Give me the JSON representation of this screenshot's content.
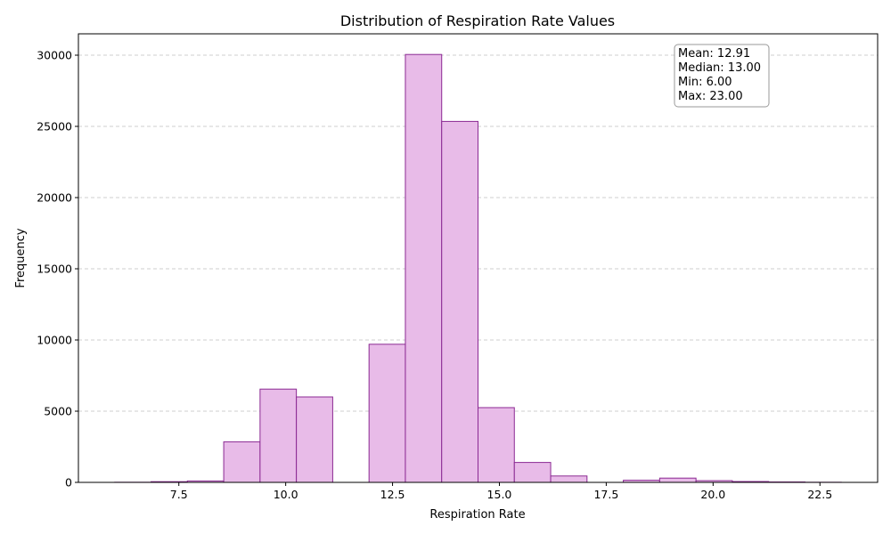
{
  "chart_data": {
    "type": "bar",
    "title": "Distribution of Respiration Rate Values",
    "xlabel": "Respiration Rate",
    "ylabel": "Frequency",
    "xlim": [
      5.15,
      23.85
    ],
    "ylim": [
      0,
      31500
    ],
    "x_ticks": [
      7.5,
      10.0,
      12.5,
      15.0,
      17.5,
      20.0,
      22.5
    ],
    "x_tick_labels": [
      "7.5",
      "10.0",
      "12.5",
      "15.0",
      "17.5",
      "20.0",
      "22.5"
    ],
    "y_ticks": [
      0,
      5000,
      10000,
      15000,
      20000,
      25000,
      30000
    ],
    "y_tick_labels": [
      "0",
      "5000",
      "10000",
      "15000",
      "20000",
      "25000",
      "30000"
    ],
    "grid": "y-dashed",
    "bin_edges": [
      6.0,
      6.85,
      7.7,
      8.55,
      9.4,
      10.25,
      11.1,
      11.95,
      12.8,
      13.65,
      14.5,
      15.35,
      16.2,
      17.05,
      17.9,
      18.75,
      19.6,
      20.45,
      21.3,
      22.15,
      23.0
    ],
    "values": [
      10,
      50,
      100,
      2850,
      6550,
      6000,
      0,
      9700,
      30050,
      25350,
      5250,
      1400,
      450,
      0,
      150,
      300,
      120,
      60,
      30,
      10
    ],
    "colors": {
      "bar_fill": "#e8bbe8",
      "bar_edge": "#8b2a93",
      "grid": "#c0c0c0"
    },
    "stats_box": {
      "mean": "Mean: 12.91",
      "median": "Median: 13.00",
      "min": "Min: 6.00",
      "max": "Max: 23.00"
    }
  }
}
